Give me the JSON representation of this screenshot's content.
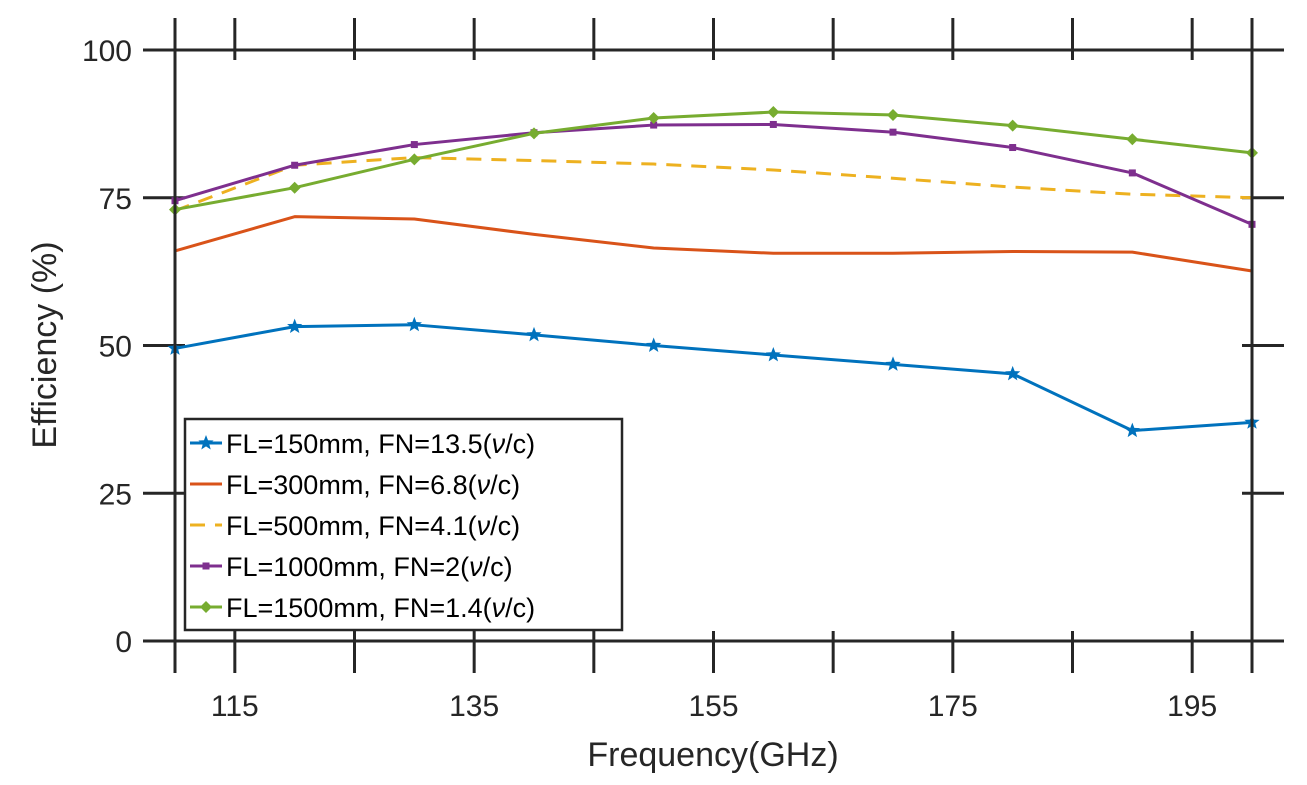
{
  "chart_data": {
    "type": "line",
    "xlabel": "Frequency(GHz)",
    "ylabel": "Efficiency (%)",
    "xlim": [
      110,
      200
    ],
    "ylim": [
      0,
      100
    ],
    "x_ticks": [
      115,
      135,
      155,
      175,
      195
    ],
    "x_minor_ticks": [
      110,
      115,
      125,
      135,
      145,
      155,
      165,
      175,
      185,
      195,
      200
    ],
    "y_ticks": [
      0,
      25,
      50,
      75,
      100
    ],
    "x": [
      110,
      120,
      130,
      140,
      150,
      160,
      170,
      180,
      190,
      200
    ],
    "legend_position": "bottom-left",
    "series": [
      {
        "name": "FL=150mm, FN=13.5",
        "unit_symbol": "ν",
        "unit_suffix": "/c",
        "open": "(",
        "close": ")",
        "color": "#0072BD",
        "marker": "star",
        "dashed": false,
        "values": [
          49.5,
          53.2,
          53.5,
          51.8,
          50.0,
          48.4,
          46.8,
          45.2,
          35.6,
          37.0
        ]
      },
      {
        "name": "FL=300mm, FN=6.8",
        "unit_symbol": "ν",
        "unit_suffix": "/c",
        "open": "(",
        "close": ")",
        "color": "#D95319",
        "marker": "none",
        "dashed": false,
        "values": [
          66.0,
          71.8,
          71.4,
          68.8,
          66.5,
          65.6,
          65.6,
          65.9,
          65.8,
          62.6
        ]
      },
      {
        "name": "FL=500mm, FN=4.1",
        "unit_symbol": "ν",
        "unit_suffix": "/c",
        "open": "(",
        "close": ")",
        "color": "#EDB120",
        "marker": "none",
        "dashed": true,
        "values": [
          72.8,
          80.5,
          81.8,
          81.3,
          80.7,
          79.7,
          78.3,
          76.8,
          75.6,
          75.0
        ]
      },
      {
        "name": "FL=1000mm, FN=2",
        "unit_symbol": "ν",
        "unit_suffix": "/c",
        "open": "(",
        "close": ")",
        "color": "#7E2F8E",
        "marker": "square",
        "dashed": false,
        "values": [
          74.5,
          80.5,
          84.0,
          86.0,
          87.3,
          87.4,
          86.1,
          83.5,
          79.2,
          70.5
        ]
      },
      {
        "name": "FL=1500mm, FN=1.4",
        "unit_symbol": "ν",
        "unit_suffix": "/c",
        "open": "(",
        "close": ")",
        "color": "#77AC30",
        "marker": "diamond",
        "dashed": false,
        "values": [
          73.0,
          76.7,
          81.5,
          85.9,
          88.5,
          89.5,
          89.0,
          87.2,
          84.9,
          82.6
        ]
      }
    ]
  }
}
